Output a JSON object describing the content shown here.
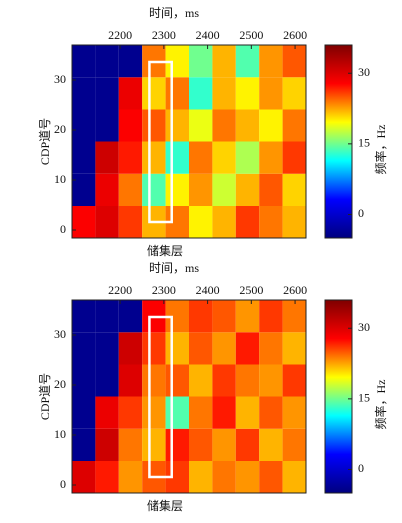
{
  "chart_data": [
    {
      "type": "heatmap",
      "xlabel": "时间，ms",
      "ylabel": "CDP道号",
      "annotation": "储集层",
      "xlim": [
        2090,
        2625
      ],
      "xticks": [
        2200,
        2300,
        2400,
        2500,
        2600
      ],
      "ylim": [
        -1.6,
        37
      ],
      "yticks": [
        0,
        10,
        20,
        30
      ],
      "x": [
        2117,
        2170,
        2224,
        2277,
        2331,
        2384,
        2438,
        2491,
        2545,
        2598
      ],
      "y": [
        1.6,
        8.0,
        14.5,
        20.9,
        27.3,
        33.8
      ],
      "z": [
        [
          28,
          30,
          26,
          22,
          24,
          20,
          22,
          26,
          24,
          22
        ],
        [
          -4,
          29,
          24,
          14,
          20,
          23,
          18,
          22,
          25,
          21
        ],
        [
          -4,
          31,
          27,
          22,
          13,
          24,
          21,
          17,
          23,
          26
        ],
        [
          -4,
          -4,
          28,
          25,
          22,
          19,
          24,
          22,
          20,
          24
        ],
        [
          -4,
          -4,
          29,
          21,
          24,
          13,
          22,
          20,
          23,
          21
        ],
        [
          -4,
          -4,
          -4,
          24,
          20,
          15,
          22,
          14,
          23,
          25
        ]
      ],
      "highlight": {
        "x0": 2267,
        "x1": 2318,
        "y0": 1.6,
        "y1": 33.6,
        "color": "#ffffff"
      },
      "colorbar": {
        "label": "频率，Hz",
        "clim": [
          -5,
          36
        ],
        "ticks": [
          0,
          15,
          30
        ],
        "colors": [
          "#00007f",
          "#0000ff",
          "#00ffff",
          "#ffff00",
          "#ff0000",
          "#7f0000"
        ]
      }
    },
    {
      "type": "heatmap",
      "xlabel": "时间，ms",
      "ylabel": "CDP道号",
      "annotation": "储集层",
      "xlim": [
        2090,
        2625
      ],
      "xticks": [
        2200,
        2300,
        2400,
        2500,
        2600
      ],
      "ylim": [
        -1.6,
        37
      ],
      "yticks": [
        0,
        10,
        20,
        30
      ],
      "x": [
        2117,
        2170,
        2224,
        2277,
        2331,
        2384,
        2438,
        2491,
        2545,
        2598
      ],
      "y": [
        1.6,
        8.0,
        14.5,
        20.9,
        27.3,
        33.8
      ],
      "z": [
        [
          30,
          27,
          23,
          25,
          26,
          22,
          24,
          23,
          25,
          22
        ],
        [
          -4,
          31,
          24,
          22,
          27,
          25,
          23,
          26,
          22,
          24
        ],
        [
          -4,
          29,
          26,
          23,
          14,
          24,
          27,
          22,
          25,
          23
        ],
        [
          -4,
          -4,
          30,
          24,
          25,
          22,
          26,
          24,
          23,
          26
        ],
        [
          -4,
          -4,
          31,
          26,
          22,
          25,
          23,
          27,
          24,
          22
        ],
        [
          -4,
          -4,
          -4,
          28,
          24,
          26,
          25,
          23,
          26,
          24
        ]
      ],
      "highlight": {
        "x0": 2267,
        "x1": 2318,
        "y0": 1.6,
        "y1": 33.6,
        "color": "#ffffff"
      },
      "colorbar": {
        "label": "频率，Hz",
        "clim": [
          -5,
          36
        ],
        "ticks": [
          0,
          15,
          30
        ],
        "colors": [
          "#00007f",
          "#0000ff",
          "#00ffff",
          "#ffff00",
          "#ff0000",
          "#7f0000"
        ]
      }
    }
  ]
}
